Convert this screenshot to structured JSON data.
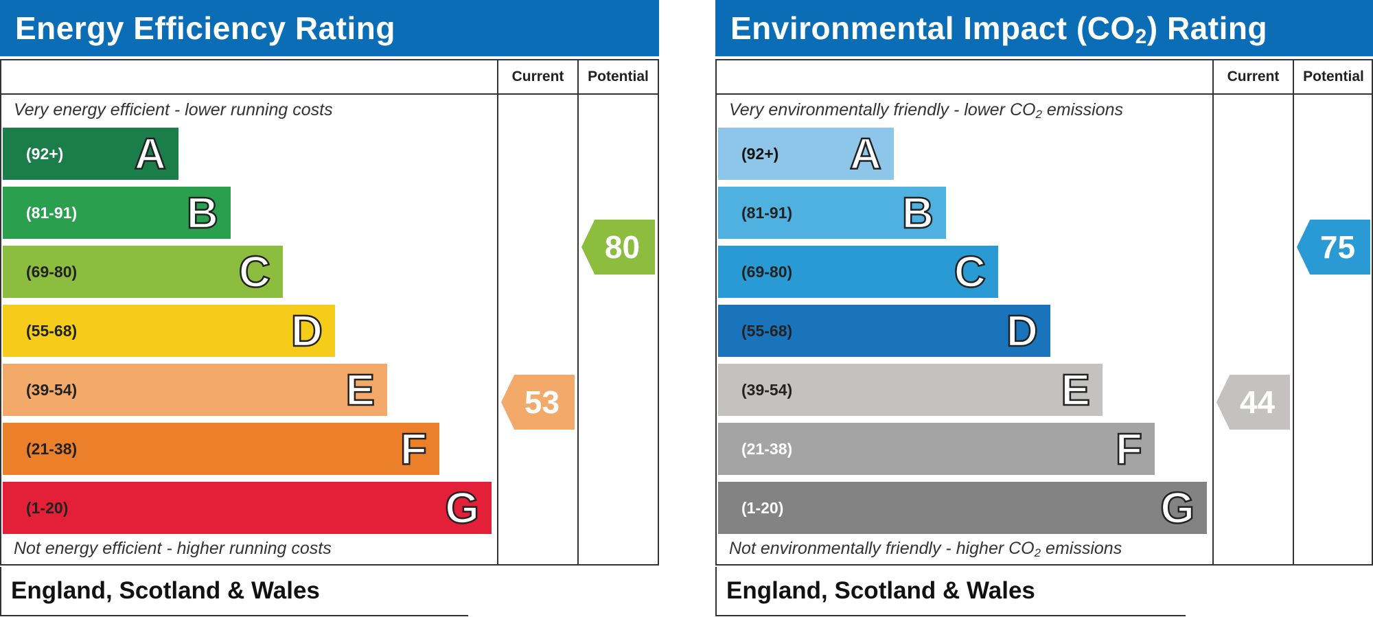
{
  "chart_data": [
    {
      "type": "bar",
      "title": "Energy Efficiency Rating",
      "columns": [
        "Current",
        "Potential"
      ],
      "top_caption": "Very energy efficient - lower running costs",
      "bottom_caption": "Not energy efficient - higher running costs",
      "footer": "England, Scotland & Wales",
      "bands": [
        {
          "range": "(92+)",
          "letter": "A",
          "color": "#1a7d4a",
          "range_color": "#ffffff"
        },
        {
          "range": "(81-91)",
          "letter": "B",
          "color": "#2aa04f",
          "range_color": "#ffffff"
        },
        {
          "range": "(69-80)",
          "letter": "C",
          "color": "#8cbd3e",
          "range_color": "#222222"
        },
        {
          "range": "(55-68)",
          "letter": "D",
          "color": "#f5cc1a",
          "range_color": "#222222"
        },
        {
          "range": "(39-54)",
          "letter": "E",
          "color": "#f2a96a",
          "range_color": "#222222"
        },
        {
          "range": "(21-38)",
          "letter": "F",
          "color": "#ec7f2a",
          "range_color": "#222222"
        },
        {
          "range": "(1-20)",
          "letter": "G",
          "color": "#e32038",
          "range_color": "#222222"
        }
      ],
      "current": {
        "value": "53",
        "band": "E",
        "color": "#f2a96a"
      },
      "potential": {
        "value": "80",
        "band": "C",
        "color": "#8cbd3e"
      }
    },
    {
      "type": "bar",
      "title": "Environmental Impact (CO",
      "title_sub": "2",
      "title_end": ") Rating",
      "columns": [
        "Current",
        "Potential"
      ],
      "top_caption": "Very environmentally friendly - lower CO",
      "top_caption_sub": "2",
      "top_caption_end": " emissions",
      "bottom_caption": "Not environmentally friendly - higher CO",
      "bottom_caption_sub": "2",
      "bottom_caption_end": " emissions",
      "footer": "England, Scotland & Wales",
      "bands": [
        {
          "range": "(92+)",
          "letter": "A",
          "color": "#8ec6ea",
          "range_color": "#111111"
        },
        {
          "range": "(81-91)",
          "letter": "B",
          "color": "#4fb1e0",
          "range_color": "#222222"
        },
        {
          "range": "(69-80)",
          "letter": "C",
          "color": "#2a9ad4",
          "range_color": "#222222"
        },
        {
          "range": "(55-68)",
          "letter": "D",
          "color": "#1a74bb",
          "range_color": "#222222"
        },
        {
          "range": "(39-54)",
          "letter": "E",
          "color": "#c3c2c0",
          "range_color": "#222222"
        },
        {
          "range": "(21-38)",
          "letter": "F",
          "color": "#a4a4a4",
          "range_color": "#ffffff"
        },
        {
          "range": "(1-20)",
          "letter": "G",
          "color": "#838383",
          "range_color": "#ffffff"
        }
      ],
      "current": {
        "value": "44",
        "band": "E",
        "color": "#c3c2c0"
      },
      "potential": {
        "value": "75",
        "band": "C",
        "color": "#2a9ad4"
      }
    }
  ]
}
